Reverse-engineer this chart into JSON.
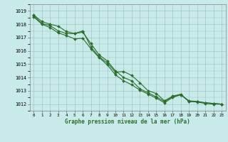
{
  "title": "Graphe pression niveau de la mer (hPa)",
  "bg_color": "#c8eae8",
  "grid_color": "#a0c8c8",
  "line_color": "#2d6e2d",
  "xlim": [
    -0.5,
    23.5
  ],
  "ylim": [
    1011.5,
    1019.5
  ],
  "yticks": [
    1012,
    1013,
    1014,
    1015,
    1016,
    1017,
    1018,
    1019
  ],
  "xtick_labels": [
    "0",
    "1",
    "2",
    "3",
    "4",
    "5",
    "6",
    "7",
    "8",
    "9",
    "10",
    "11",
    "12",
    "13",
    "14",
    "15",
    "16",
    "17",
    "18",
    "19",
    "20",
    "21",
    "22",
    "23"
  ],
  "series1": [
    1018.7,
    1018.2,
    1018.0,
    1017.85,
    1017.45,
    1017.3,
    1017.5,
    1016.3,
    1015.55,
    1015.1,
    1014.4,
    1014.45,
    1014.15,
    1013.6,
    1013.0,
    1012.8,
    1012.25,
    1012.6,
    1012.75,
    1012.2,
    1012.2,
    1012.1,
    1012.05,
    1012.0
  ],
  "series2": [
    1018.65,
    1018.05,
    1017.9,
    1017.5,
    1017.3,
    1017.3,
    1017.4,
    1016.55,
    1015.7,
    1015.25,
    1014.5,
    1014.0,
    1013.75,
    1013.15,
    1012.85,
    1012.55,
    1012.2,
    1012.55,
    1012.7,
    1012.25,
    1012.2,
    1012.1,
    1012.05,
    1012.0
  ],
  "series3": [
    1018.55,
    1018.0,
    1017.75,
    1017.35,
    1017.15,
    1016.9,
    1016.95,
    1016.15,
    1015.5,
    1014.95,
    1014.2,
    1013.75,
    1013.45,
    1013.05,
    1012.75,
    1012.45,
    1012.1,
    1012.5,
    1012.7,
    1012.2,
    1012.15,
    1012.05,
    1012.0,
    1012.0
  ]
}
